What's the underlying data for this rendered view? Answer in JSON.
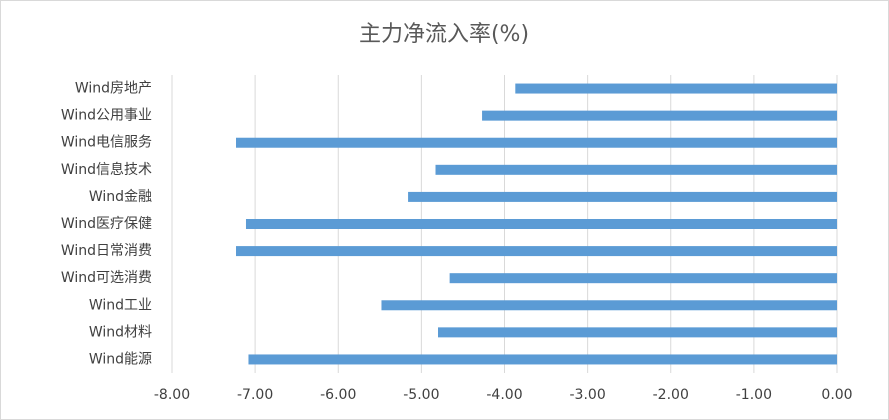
{
  "chart_data": {
    "type": "hbar",
    "title": "主力净流入率(%)",
    "categories": [
      "Wind房地产",
      "Wind公用事业",
      "Wind电信服务",
      "Wind信息技术",
      "Wind金融",
      "Wind医疗保健",
      "Wind日常消费",
      "Wind可选消费",
      "Wind工业",
      "Wind材料",
      "Wind能源"
    ],
    "values": [
      -3.87,
      -4.27,
      -7.23,
      -4.83,
      -5.16,
      -7.11,
      -7.23,
      -4.66,
      -5.48,
      -4.8,
      -7.08
    ],
    "color": "#5b9bd5",
    "xlim": [
      -8,
      0
    ],
    "xticks": [
      {
        "value": -8,
        "label": "-8.00"
      },
      {
        "value": -7,
        "label": "-7.00"
      },
      {
        "value": -6,
        "label": "-6.00"
      },
      {
        "value": -5,
        "label": "-5.00"
      },
      {
        "value": -4,
        "label": "-4.00"
      },
      {
        "value": -3,
        "label": "-3.00"
      },
      {
        "value": -2,
        "label": "-2.00"
      },
      {
        "value": -1,
        "label": "-1.00"
      },
      {
        "value": 0,
        "label": "0.00"
      }
    ],
    "grid": true
  }
}
